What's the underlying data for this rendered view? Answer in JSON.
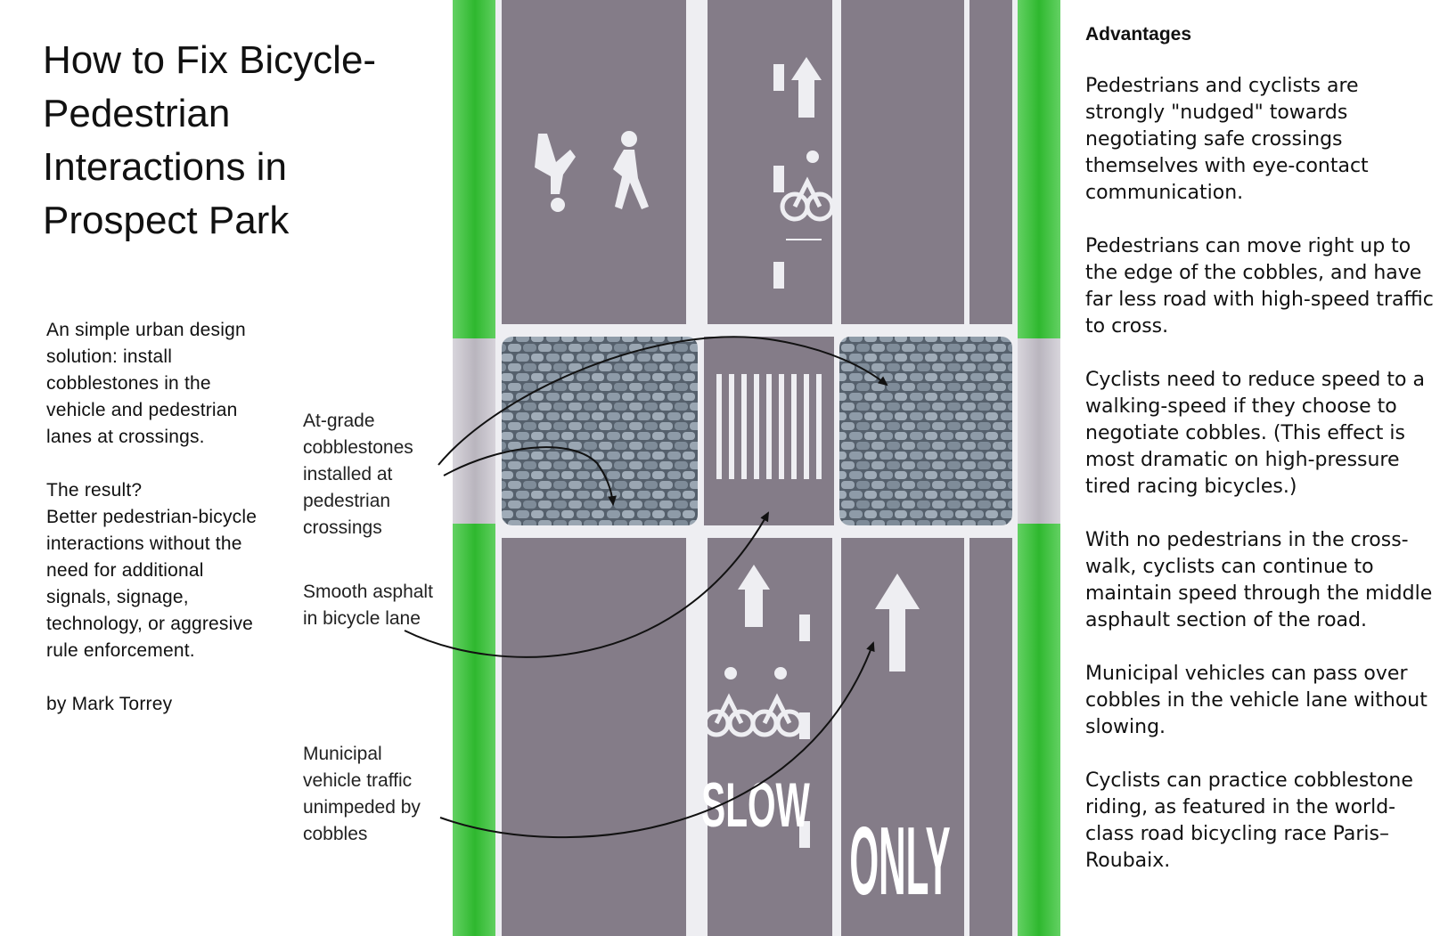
{
  "title": "How to Fix Bicycle-Pedestrian Interactions in Prospect Park",
  "intro": {
    "summary": "An simple urban design solution: install cobblestones in the vehicle and pedestrian lanes at crossings.",
    "result_question": "The result?",
    "result_text": "Better pedestrian-bicycle interactions without the need for additional signals, signage, technology, or aggresive rule enforcement.",
    "byline": "by Mark Torrey"
  },
  "callouts": [
    {
      "label": "At-grade cobblestones installed at pedestrian crossings"
    },
    {
      "label": "Smooth asphalt in bicycle lane"
    },
    {
      "label": "Municipal vehicle traffic unimpeded by cobbles"
    }
  ],
  "road_markings": {
    "slow": "SLOW",
    "only": "ONLY"
  },
  "advantages": {
    "heading": "Advantages",
    "items": [
      "Pedestrians and cyclists are strongly \"nudged\" towards negotiating safe crossings themselves with eye-contact communication.",
      "Pedestrians can move right up to the edge of the cobbles, and have far less road with high-speed traffic to cross.",
      "Cyclists need to reduce speed to a walking-speed if they choose to negotiate cobbles. (This effect is most dramatic on high-pressure tired racing bicycles.)",
      "With no pedestrians in the cross-walk, cyclists can continue to maintain speed through the middle asphault section of the road.",
      "Municipal vehicles can pass over cobbles in the vehicle lane without slowing.",
      "Cyclists can practice cobblestone riding, as featured in the world-class road bicycling race Paris–Roubaix."
    ]
  },
  "colors": {
    "asphalt": "#847c88",
    "lane_line": "#eeeef2",
    "grass": "#3fbf3f",
    "cobble": "#7d8a96",
    "sidewalk": "#c8c4cc"
  }
}
